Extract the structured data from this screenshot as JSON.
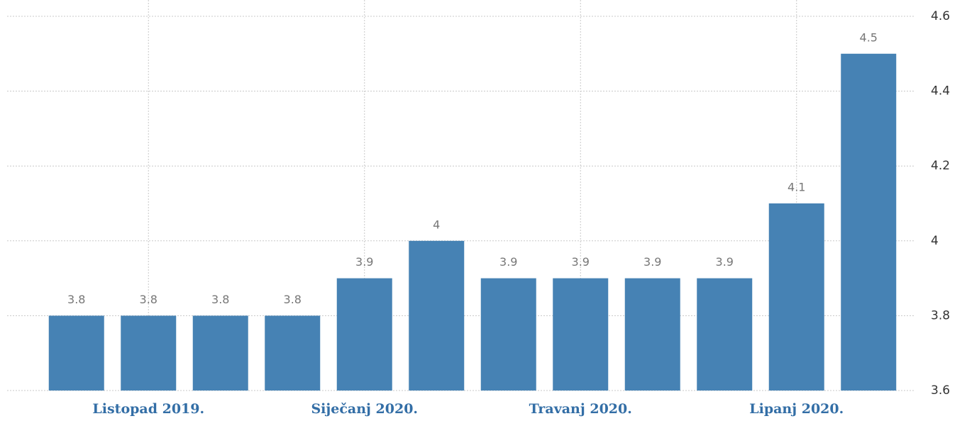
{
  "chart_data": {
    "type": "bar",
    "categories": [
      null,
      "Listopad 2019.",
      null,
      null,
      "Siječanj 2020.",
      null,
      null,
      "Travanj 2020.",
      null,
      null,
      "Lipanj 2020.",
      null
    ],
    "values": [
      3.8,
      3.8,
      3.8,
      3.8,
      3.9,
      4,
      3.9,
      3.9,
      3.9,
      3.9,
      4.1,
      4.5
    ],
    "color": "#4682b4",
    "ylim": [
      3.6,
      4.6
    ],
    "yticks": [
      3.6,
      3.8,
      4,
      4.2,
      4.4,
      4.6
    ],
    "grid": true
  }
}
